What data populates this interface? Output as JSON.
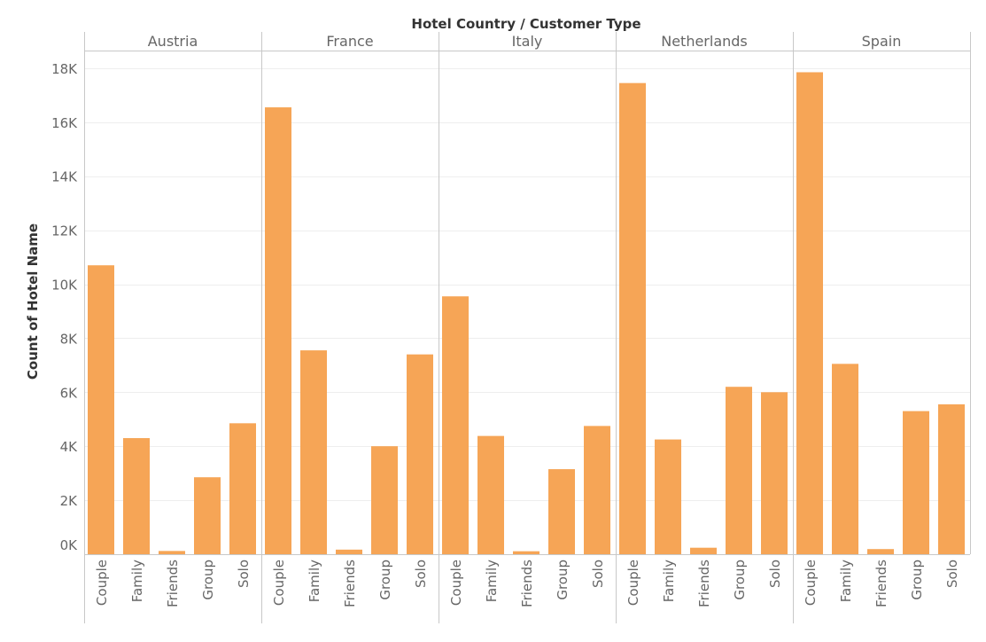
{
  "chart_data": {
    "type": "bar",
    "header": "Hotel Country  /  Customer Type",
    "ylabel": "Count of Hotel Name",
    "ylim": [
      0,
      18500
    ],
    "yticks": [
      0,
      2000,
      4000,
      6000,
      8000,
      10000,
      12000,
      14000,
      16000,
      18000
    ],
    "ytick_labels": [
      "0K",
      "2K",
      "4K",
      "6K",
      "8K",
      "10K",
      "12K",
      "14K",
      "16K",
      "18K"
    ],
    "grid": "horizontal",
    "bar_color": "#F6A556",
    "categories": [
      "Couple",
      "Family",
      "Friends",
      "Group",
      "Solo"
    ],
    "panels": [
      {
        "name": "Austria",
        "values": [
          10700,
          4300,
          120,
          2850,
          4850
        ]
      },
      {
        "name": "France",
        "values": [
          16550,
          7550,
          170,
          4000,
          7400
        ]
      },
      {
        "name": "Italy",
        "values": [
          9550,
          4380,
          110,
          3150,
          4750
        ]
      },
      {
        "name": "Netherlands",
        "values": [
          17450,
          4250,
          240,
          6200,
          6000
        ]
      },
      {
        "name": "Spain",
        "values": [
          17850,
          7050,
          190,
          5300,
          5550
        ]
      }
    ]
  }
}
